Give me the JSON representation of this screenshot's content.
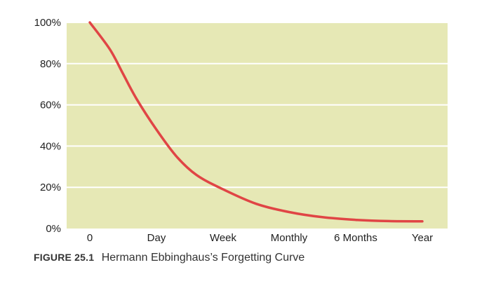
{
  "chart_data": {
    "type": "line",
    "title": "",
    "xlabel": "",
    "ylabel": "",
    "categories": [
      "0",
      "Day",
      "Week",
      "Monthly",
      "6 Months",
      "Year"
    ],
    "y_ticks": [
      "100%",
      "80%",
      "60%",
      "40%",
      "20%",
      "0%"
    ],
    "ylim": [
      0,
      100
    ],
    "grid": true,
    "legend": "none",
    "series": [
      {
        "x": [
          0,
          0.3,
          0.5,
          0.7,
          1.0,
          1.3,
          1.6,
          2.0,
          2.5,
          3.0,
          3.5,
          4.0,
          4.5,
          5.0
        ],
        "values": [
          100,
          87,
          75,
          63,
          48,
          35,
          26,
          19,
          12,
          8,
          5.5,
          4.2,
          3.6,
          3.5
        ]
      }
    ],
    "colors": {
      "plot_background": "#E6E8B5",
      "gridline": "#FFFFFF",
      "curve": "#E04545"
    }
  },
  "caption": {
    "figure_label": "FIGURE 25.1",
    "text": "Hermann Ebbinghaus’s Forgetting Curve"
  }
}
